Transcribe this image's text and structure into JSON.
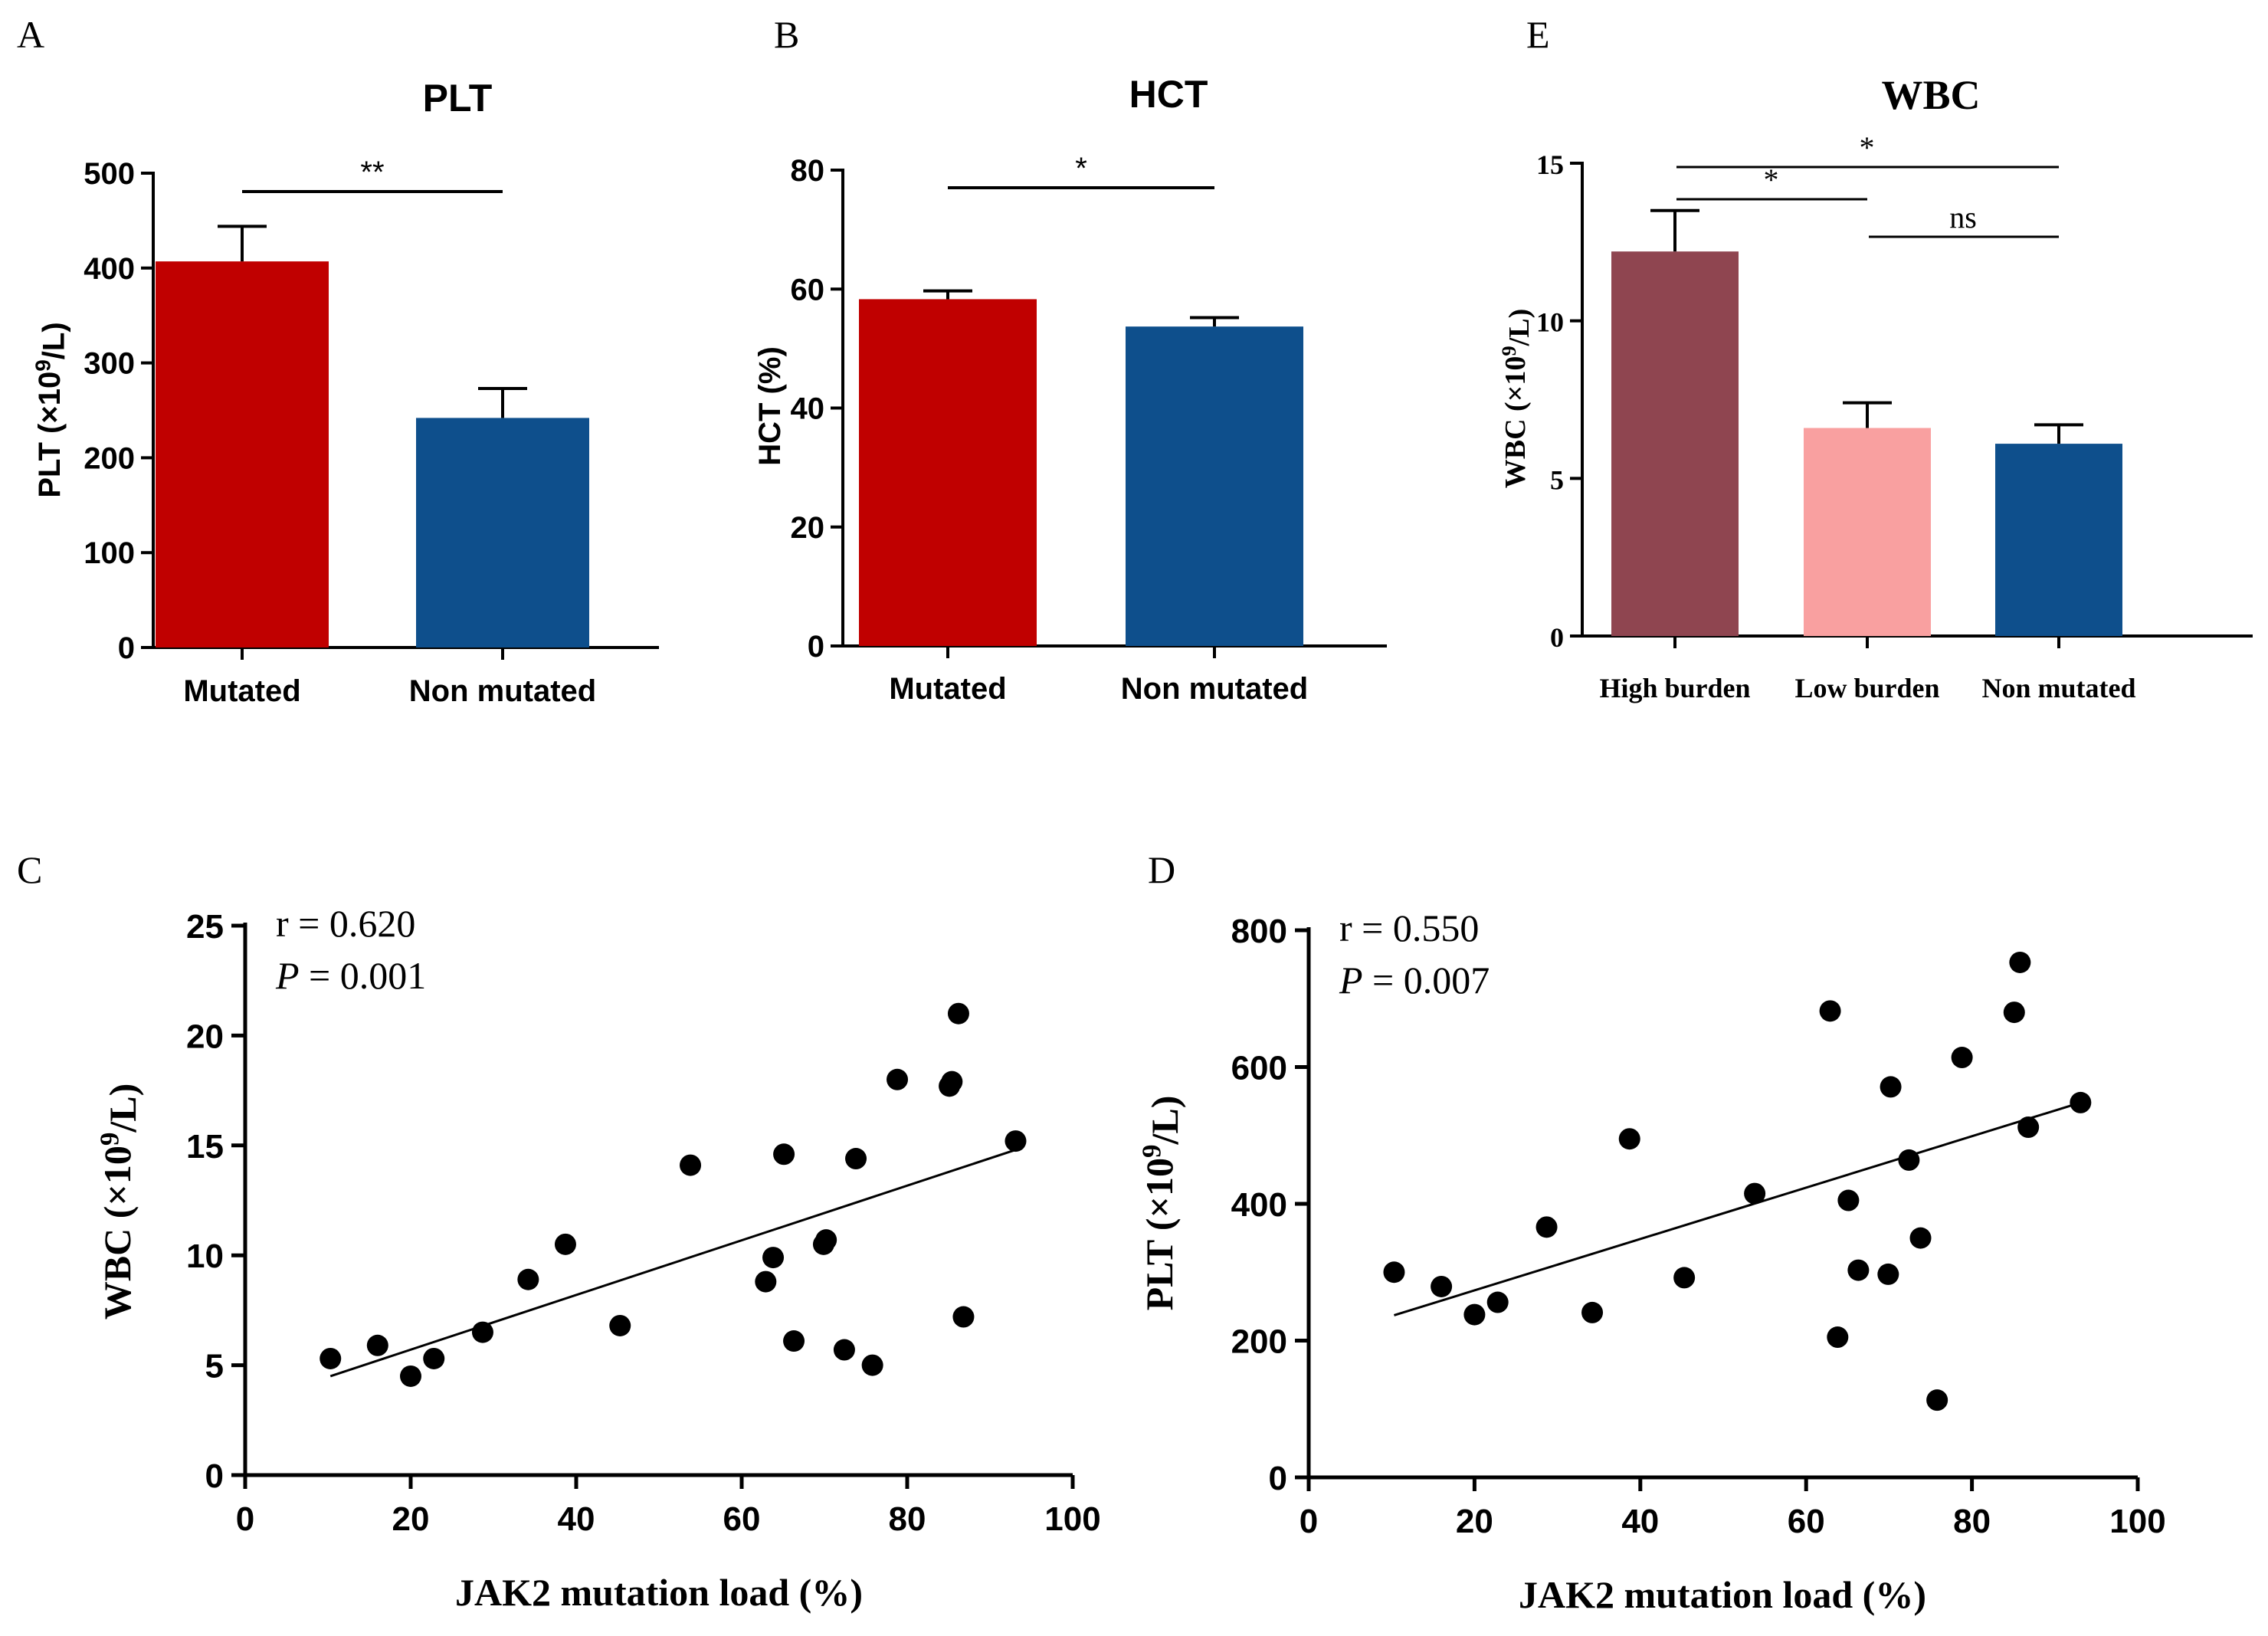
{
  "chart_data": [
    {
      "panel": "A",
      "type": "bar",
      "title": "PLT",
      "ylabel": "PLT (×10⁹/L)",
      "categories": [
        "Mutated",
        "Non mutated"
      ],
      "values": [
        407,
        242
      ],
      "errors": [
        37,
        31
      ],
      "colors": [
        "#c00000",
        "#0e4f8c"
      ],
      "ylim": [
        0,
        500
      ],
      "yticks": [
        0,
        100,
        200,
        300,
        400,
        500
      ],
      "significance": [
        {
          "from": 0,
          "to": 1,
          "label": "**"
        }
      ]
    },
    {
      "panel": "B",
      "type": "bar",
      "title": "HCT",
      "ylabel": "HCT (%)",
      "categories": [
        "Mutated",
        "Non mutated"
      ],
      "values": [
        58.3,
        53.7
      ],
      "errors": [
        1.4,
        1.5
      ],
      "colors": [
        "#c00000",
        "#0e4f8c"
      ],
      "ylim": [
        0,
        80
      ],
      "yticks": [
        0,
        20,
        40,
        60,
        80
      ],
      "significance": [
        {
          "from": 0,
          "to": 1,
          "label": "*"
        }
      ]
    },
    {
      "panel": "E",
      "type": "bar",
      "title": "WBC",
      "ylabel": "WBC (×10⁹/L)",
      "categories": [
        "High burden",
        "Low burden",
        "Non mutated"
      ],
      "values": [
        12.2,
        6.6,
        6.1
      ],
      "errors": [
        1.3,
        0.8,
        0.6
      ],
      "colors": [
        "#8f4550",
        "#f9a0a0",
        "#0e4f8c"
      ],
      "ylim": [
        0,
        15
      ],
      "yticks": [
        0,
        5,
        10,
        15
      ],
      "significance": [
        {
          "from": 0,
          "to": 2,
          "label": "*"
        },
        {
          "from": 0,
          "to": 1,
          "label": "*"
        },
        {
          "from": 1,
          "to": 2,
          "label": "ns"
        }
      ]
    },
    {
      "panel": "C",
      "type": "scatter",
      "xlabel": "JAK2 mutation load (%)",
      "ylabel": "WBC (×10⁹/L)",
      "r_text": "r = 0.620",
      "p_label": "P",
      "p_value": " = 0.001",
      "xlim": [
        0,
        100
      ],
      "ylim": [
        0,
        25
      ],
      "xticks": [
        0,
        20,
        40,
        60,
        80,
        100
      ],
      "yticks": [
        0,
        5,
        10,
        15,
        20,
        25
      ],
      "points": [
        [
          10.3,
          5.3
        ],
        [
          16.0,
          5.9
        ],
        [
          20.0,
          4.5
        ],
        [
          22.8,
          5.3
        ],
        [
          28.7,
          6.5
        ],
        [
          34.2,
          8.9
        ],
        [
          38.7,
          10.5
        ],
        [
          45.3,
          6.8
        ],
        [
          53.8,
          14.1
        ],
        [
          62.9,
          8.8
        ],
        [
          63.8,
          9.9
        ],
        [
          65.1,
          14.6
        ],
        [
          66.3,
          6.1
        ],
        [
          69.9,
          10.5
        ],
        [
          70.2,
          10.7
        ],
        [
          72.4,
          5.7
        ],
        [
          73.8,
          14.4
        ],
        [
          75.8,
          5.0
        ],
        [
          78.8,
          18.0
        ],
        [
          85.1,
          17.7
        ],
        [
          85.4,
          17.9
        ],
        [
          86.2,
          21.0
        ],
        [
          86.8,
          7.2
        ],
        [
          93.1,
          15.2
        ]
      ],
      "fit": [
        [
          10.3,
          4.5
        ],
        [
          93.1,
          14.8
        ]
      ]
    },
    {
      "panel": "D",
      "type": "scatter",
      "xlabel": "JAK2 mutation load (%)",
      "ylabel": "PLT (×10⁹/L)",
      "r_text": "r = 0.550",
      "p_label": "P",
      "p_value": " = 0.007",
      "xlim": [
        0,
        100
      ],
      "ylim": [
        0,
        800
      ],
      "xticks": [
        0,
        20,
        40,
        60,
        80,
        100
      ],
      "yticks": [
        0,
        200,
        400,
        600,
        800
      ],
      "points": [
        [
          10.3,
          300
        ],
        [
          16.0,
          279
        ],
        [
          20.0,
          238
        ],
        [
          22.8,
          256
        ],
        [
          28.7,
          366
        ],
        [
          34.2,
          241
        ],
        [
          38.7,
          495
        ],
        [
          45.3,
          292
        ],
        [
          53.8,
          415
        ],
        [
          62.9,
          682
        ],
        [
          63.8,
          205
        ],
        [
          65.1,
          405
        ],
        [
          66.3,
          303
        ],
        [
          69.9,
          297
        ],
        [
          70.2,
          571
        ],
        [
          72.4,
          464
        ],
        [
          73.8,
          350
        ],
        [
          75.8,
          113
        ],
        [
          78.8,
          614
        ],
        [
          85.1,
          680
        ],
        [
          85.8,
          753
        ],
        [
          86.8,
          512
        ],
        [
          93.1,
          548
        ]
      ],
      "fit": [
        [
          10.3,
          237
        ],
        [
          93.1,
          548
        ]
      ]
    }
  ],
  "panel_labels": {
    "A": "A",
    "B": "B",
    "E": "E",
    "C": "C",
    "D": "D"
  }
}
